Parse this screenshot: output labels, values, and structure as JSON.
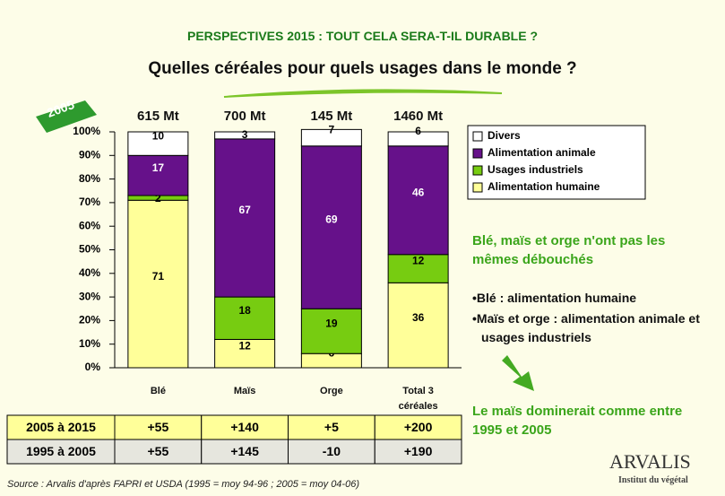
{
  "header": "PERSPECTIVES 2015 : TOUT CELA SERA-T-IL DURABLE ?",
  "badge": "2005",
  "chart_data": {
    "type": "stacked_bar",
    "title": "Quelles céréales pour quels usages dans le monde ?",
    "categories": [
      "Blé",
      "Maïs",
      "Orge",
      "Total 3 céréales"
    ],
    "bar_top_labels": [
      "615 Mt",
      "700 Mt",
      "145 Mt",
      "1460 Mt"
    ],
    "series": [
      {
        "name": "Alimentation humaine",
        "color": "#ffff99",
        "values": [
          71,
          12,
          6,
          36
        ]
      },
      {
        "name": "Usages industriels",
        "color": "#77cc11",
        "values": [
          2,
          18,
          19,
          12
        ]
      },
      {
        "name": "Alimentation animale",
        "color": "#66118a",
        "values": [
          17,
          67,
          69,
          46
        ]
      },
      {
        "name": "Divers",
        "color": "#ffffff",
        "values": [
          10,
          3,
          7,
          6
        ]
      }
    ],
    "ylim": [
      0,
      100
    ],
    "yticks": [
      {
        "value": 0,
        "label": "0%"
      },
      {
        "value": 10,
        "label": "10%"
      },
      {
        "value": 20,
        "label": "20%"
      },
      {
        "value": 30,
        "label": "30%"
      },
      {
        "value": 40,
        "label": "40%"
      },
      {
        "value": 50,
        "label": "50%"
      },
      {
        "value": 60,
        "label": "60%"
      },
      {
        "value": 70,
        "label": "70%"
      },
      {
        "value": 80,
        "label": "80%"
      },
      {
        "value": 90,
        "label": "90%"
      },
      {
        "value": 100,
        "label": "100%"
      }
    ],
    "legend": "top-right"
  },
  "table": {
    "rows": [
      [
        "2005 à 2015",
        "+55",
        "+140",
        "+5",
        "+200"
      ],
      [
        "1995 à 2005",
        "+55",
        "+145",
        "-10",
        "+190"
      ]
    ]
  },
  "side": {
    "headline": "Blé, maïs et orge n'ont pas les mêmes débouchés",
    "bullets": [
      "•Blé : alimentation humaine",
      "•Maïs et orge : alimentation animale et usages industriels"
    ],
    "conclusion": "Le maïs dominerait comme entre 1995 et 2005"
  },
  "source": "Source : Arvalis d'après FAPRI et USDA (1995 = moy 94-96 ; 2005 = moy 04-06)",
  "logo": {
    "name": "ARVALIS",
    "tagline": "Institut du végétal"
  }
}
